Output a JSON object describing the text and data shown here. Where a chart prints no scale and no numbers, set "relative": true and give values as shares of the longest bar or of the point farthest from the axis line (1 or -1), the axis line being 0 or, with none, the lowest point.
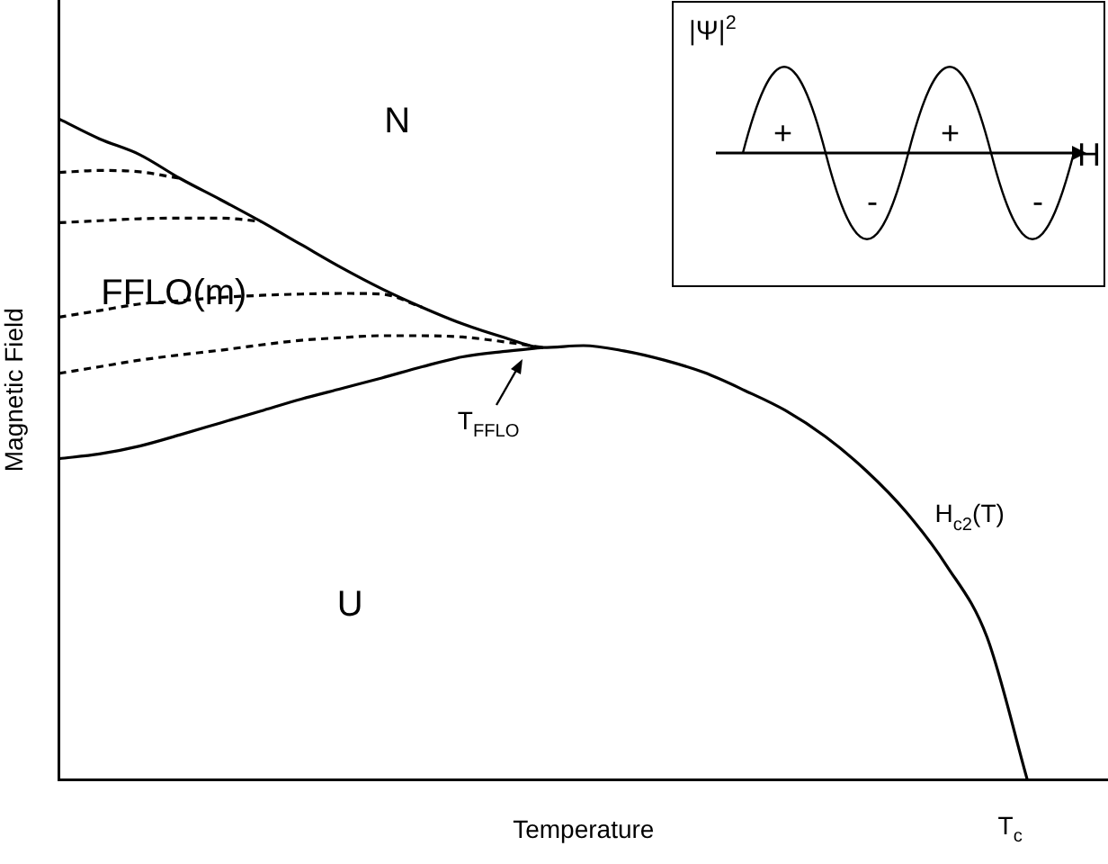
{
  "chart_data": {
    "type": "line",
    "relative": true,
    "xlabel": "Temperature",
    "ylabel": "Magnetic Field",
    "grid": false,
    "legend": false,
    "marker": "none",
    "categories": [
      null,
      null,
      null,
      null,
      null,
      null,
      null,
      null,
      null,
      null,
      null,
      null,
      null,
      null,
      null,
      null,
      null,
      null,
      null,
      null,
      null,
      null,
      null,
      null,
      null,
      null,
      null
    ],
    "series": [
      {
        "color": "#000000",
        "line_style": "solid",
        "values": [
          1.0,
          0.97,
          0.946,
          0.91,
          0.878,
          0.845,
          0.81,
          0.775,
          0.743,
          0.715,
          0.69,
          0.67,
          0.654,
          0.657,
          0.649,
          0.635,
          0.616,
          0.589,
          0.559,
          0.519,
          0.468,
          0.405,
          0.324,
          0.216,
          0.0,
          null,
          null
        ]
      },
      {
        "color": "#000000",
        "line_style": "solid",
        "values": [
          0.486,
          0.493,
          0.505,
          0.522,
          0.54,
          0.558,
          0.576,
          0.592,
          0.608,
          0.625,
          0.64,
          0.648,
          0.654,
          null,
          null,
          null,
          null,
          null,
          null,
          null,
          null,
          null,
          null,
          null,
          null,
          null,
          null
        ]
      },
      {
        "color": "#000000",
        "line_style": "dashed",
        "values": [
          0.919,
          0.922,
          0.92,
          0.91,
          null,
          null,
          null,
          null,
          null,
          null,
          null,
          null,
          null,
          null,
          null,
          null,
          null,
          null,
          null,
          null,
          null,
          null,
          null,
          null,
          null,
          null,
          null
        ]
      },
      {
        "color": "#000000",
        "line_style": "dashed",
        "values": [
          0.843,
          0.846,
          0.849,
          0.85,
          0.85,
          0.845,
          null,
          null,
          null,
          null,
          null,
          null,
          null,
          null,
          null,
          null,
          null,
          null,
          null,
          null,
          null,
          null,
          null,
          null,
          null,
          null,
          null
        ]
      },
      {
        "color": "#000000",
        "line_style": "dashed",
        "values": [
          0.7,
          0.71,
          0.72,
          0.725,
          0.73,
          0.733,
          0.735,
          0.736,
          0.735,
          0.715,
          null,
          null,
          null,
          null,
          null,
          null,
          null,
          null,
          null,
          null,
          null,
          null,
          null,
          null,
          null,
          null,
          null
        ]
      },
      {
        "color": "#000000",
        "line_style": "dashed",
        "values": [
          0.615,
          0.625,
          0.635,
          0.643,
          0.65,
          0.658,
          0.665,
          0.669,
          0.672,
          0.672,
          0.67,
          0.663,
          0.654,
          null,
          null,
          null,
          null,
          null,
          null,
          null,
          null,
          null,
          null,
          null,
          null,
          null,
          null
        ]
      }
    ],
    "annotations": [
      "N",
      "FFLO(m)",
      "U",
      "T$_{FFLO}$",
      "H$_{c2}$(T)",
      "T$_{c}$",
      "|Ψ|$^{2}$",
      "+",
      "+",
      "-",
      "-",
      "H"
    ]
  }
}
